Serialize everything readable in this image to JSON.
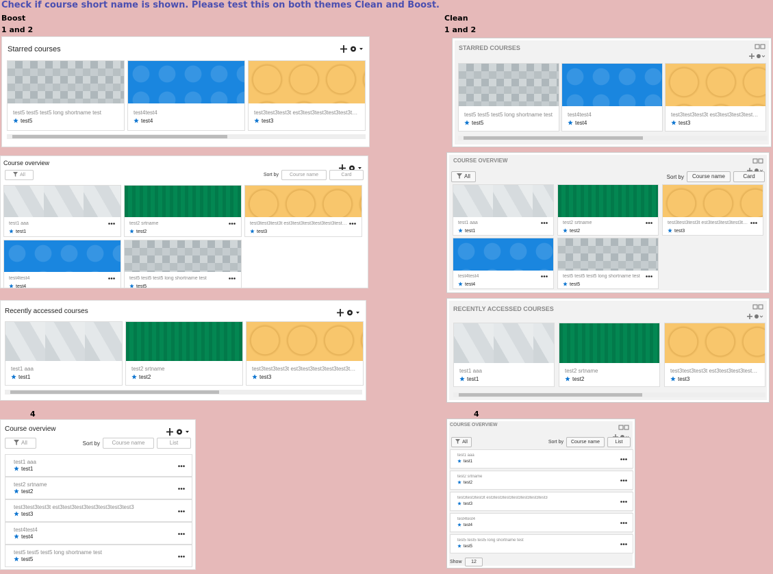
{
  "heading": "Check if course short name is shown. Please test this on both themes Clean and Boost.",
  "boost": {
    "theme": "Boost",
    "step": "1 and 2",
    "list_step": "4",
    "starred": {
      "title": "Starred courses",
      "courses": [
        {
          "name": "test5 test5 test5 long shortname test",
          "shortname": "test5"
        },
        {
          "name": "test4test4",
          "shortname": "test4"
        },
        {
          "name": "test3test3test3t est3test3test3test3test3test3test3",
          "shortname": "test3"
        }
      ]
    },
    "overview": {
      "title": "Course overview",
      "filter": "All",
      "sort_label": "Sort by",
      "sort": "Course name",
      "view": "Card",
      "courses": [
        {
          "name": "test1 aaa",
          "shortname": "test1"
        },
        {
          "name": "test2 srtname",
          "shortname": "test2"
        },
        {
          "name": "test3test3test3t est3test3test3test3test3test3test3",
          "shortname": "test3"
        },
        {
          "name": "test4test4",
          "shortname": "test4"
        },
        {
          "name": "test5 test5 test5 long shortname test",
          "shortname": "test5"
        }
      ]
    },
    "recent": {
      "title": "Recently accessed courses",
      "courses": [
        {
          "name": "test1 aaa",
          "shortname": "test1"
        },
        {
          "name": "test2 srtname",
          "shortname": "test2"
        },
        {
          "name": "test3test3test3t est3test3test3test3test3test3test3",
          "shortname": "test3"
        }
      ]
    },
    "list": {
      "title": "Course overview",
      "filter": "All",
      "sort_label": "Sort by",
      "sort": "Course name",
      "view": "List",
      "courses": [
        {
          "name": "test1 aaa",
          "shortname": "test1"
        },
        {
          "name": "test2 srtname",
          "shortname": "test2"
        },
        {
          "name": "test3test3test3t est3test3test3test3test3test3test3",
          "shortname": "test3"
        },
        {
          "name": "test4test4",
          "shortname": "test4"
        },
        {
          "name": "test5 test5 test5 long shortname test",
          "shortname": "test5"
        }
      ]
    }
  },
  "clean": {
    "theme": "Clean",
    "step": "1 and 2",
    "list_step": "4",
    "starred": {
      "title": "STARRED COURSES",
      "courses": [
        {
          "name": "test5 test5 test5 long shortname test",
          "shortname": "test5"
        },
        {
          "name": "test4test4",
          "shortname": "test4"
        },
        {
          "name": "test3test3test3t est3test3test3test3test3test3test3",
          "shortname": "test3"
        }
      ]
    },
    "overview": {
      "title": "COURSE OVERVIEW",
      "filter": "All",
      "sort_label": "Sort by",
      "sort": "Course name",
      "view": "Card",
      "courses": [
        {
          "name": "test1 aaa",
          "shortname": "test1"
        },
        {
          "name": "test2 srtname",
          "shortname": "test2"
        },
        {
          "name": "test3test3test3t est3test3test3test3test3test3test3",
          "shortname": "test3"
        },
        {
          "name": "test4test4",
          "shortname": "test4"
        },
        {
          "name": "test5 test5 test5 long shortname test",
          "shortname": "test5"
        }
      ]
    },
    "recent": {
      "title": "RECENTLY ACCESSED COURSES",
      "courses": [
        {
          "name": "test1 aaa",
          "shortname": "test1"
        },
        {
          "name": "test2 srtname",
          "shortname": "test2"
        },
        {
          "name": "test3test3test3t est3test3test3test3test3test3test3",
          "shortname": "test3"
        }
      ]
    },
    "list": {
      "title": "COURSE OVERVIEW",
      "filter": "All",
      "sort_label": "Sort by",
      "sort": "Course name",
      "view": "List",
      "show_label": "Show",
      "show": "12",
      "courses": [
        {
          "name": "test1 aaa",
          "shortname": "test1"
        },
        {
          "name": "test2 srtname",
          "shortname": "test2"
        },
        {
          "name": "test3test3test3t est3test3test3test3test3test3test3",
          "shortname": "test3"
        },
        {
          "name": "test4test4",
          "shortname": "test4"
        },
        {
          "name": "test5 test5 test5 long shortname test",
          "shortname": "test5"
        }
      ]
    }
  }
}
